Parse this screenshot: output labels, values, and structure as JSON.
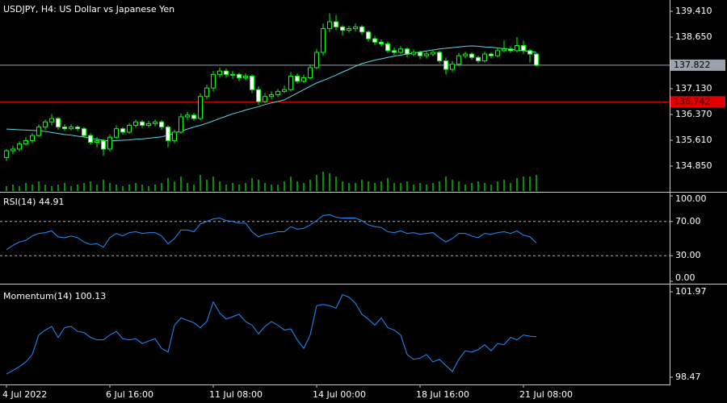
{
  "chart_data": [
    {
      "type": "candlestick",
      "title": "USDJPY, H4:  US Dollar vs Japanese Yen",
      "categories": [
        "4 Jul 2022",
        null,
        null,
        null,
        null,
        null,
        null,
        null,
        null,
        null,
        null,
        null,
        null,
        null,
        null,
        null,
        "6 Jul 16:00",
        null,
        null,
        null,
        null,
        null,
        null,
        null,
        null,
        null,
        null,
        null,
        null,
        null,
        null,
        null,
        "11 Jul 08:00",
        null,
        null,
        null,
        null,
        null,
        null,
        null,
        null,
        null,
        null,
        null,
        null,
        null,
        null,
        null,
        "14 Jul 00:00",
        null,
        null,
        null,
        null,
        null,
        null,
        null,
        null,
        null,
        null,
        null,
        null,
        null,
        null,
        null,
        "18 Jul 16:00",
        null,
        null,
        null,
        null,
        null,
        null,
        null,
        null,
        null,
        null,
        null,
        null,
        null,
        null,
        null,
        "21 Jul 08:00",
        null,
        null
      ],
      "ohlc": [
        [
          135.1,
          135.35,
          135.0,
          135.3
        ],
        [
          135.3,
          135.45,
          135.2,
          135.35
        ],
        [
          135.35,
          135.58,
          135.28,
          135.5
        ],
        [
          135.5,
          135.7,
          135.45,
          135.6
        ],
        [
          135.6,
          135.82,
          135.52,
          135.75
        ],
        [
          135.75,
          136.08,
          135.7,
          136.0
        ],
        [
          136.0,
          136.22,
          135.92,
          136.15
        ],
        [
          136.15,
          136.38,
          136.05,
          136.25
        ],
        [
          136.25,
          136.3,
          135.92,
          136.0
        ],
        [
          136.0,
          136.08,
          135.88,
          135.95
        ],
        [
          135.95,
          136.08,
          135.9,
          136.0
        ],
        [
          136.0,
          136.05,
          135.88,
          135.95
        ],
        [
          135.95,
          136.0,
          135.68,
          135.75
        ],
        [
          135.75,
          135.82,
          135.48,
          135.55
        ],
        [
          135.55,
          135.7,
          135.4,
          135.6
        ],
        [
          135.6,
          135.65,
          135.15,
          135.35
        ],
        [
          135.35,
          135.78,
          135.28,
          135.7
        ],
        [
          135.7,
          136.05,
          135.65,
          135.95
        ],
        [
          135.95,
          136.0,
          135.78,
          135.85
        ],
        [
          135.85,
          136.12,
          135.8,
          136.05
        ],
        [
          136.05,
          136.22,
          135.98,
          136.15
        ],
        [
          136.15,
          136.2,
          135.98,
          136.05
        ],
        [
          136.05,
          136.18,
          135.98,
          136.1
        ],
        [
          136.1,
          136.22,
          136.02,
          136.15
        ],
        [
          136.15,
          136.2,
          135.92,
          136.0
        ],
        [
          136.0,
          136.05,
          135.4,
          135.6
        ],
        [
          135.6,
          135.92,
          135.52,
          135.85
        ],
        [
          135.85,
          136.4,
          135.8,
          136.3
        ],
        [
          136.3,
          136.45,
          136.2,
          136.35
        ],
        [
          136.35,
          136.42,
          136.18,
          136.25
        ],
        [
          136.25,
          137.0,
          136.2,
          136.9
        ],
        [
          136.9,
          137.25,
          136.82,
          137.15
        ],
        [
          137.15,
          137.65,
          137.05,
          137.55
        ],
        [
          137.55,
          137.75,
          137.45,
          137.65
        ],
        [
          137.65,
          137.72,
          137.45,
          137.55
        ],
        [
          137.55,
          137.65,
          137.42,
          137.55
        ],
        [
          137.55,
          137.6,
          137.35,
          137.45
        ],
        [
          137.45,
          137.58,
          137.38,
          137.5
        ],
        [
          137.5,
          137.55,
          137.0,
          137.1
        ],
        [
          137.1,
          137.2,
          136.65,
          136.75
        ],
        [
          136.75,
          137.0,
          136.7,
          136.9
        ],
        [
          136.9,
          137.05,
          136.82,
          136.95
        ],
        [
          136.95,
          137.12,
          136.88,
          137.05
        ],
        [
          137.05,
          137.22,
          137.0,
          137.1
        ],
        [
          137.1,
          137.62,
          137.05,
          137.5
        ],
        [
          137.5,
          137.58,
          137.28,
          137.35
        ],
        [
          137.35,
          137.55,
          137.3,
          137.45
        ],
        [
          137.45,
          137.85,
          137.4,
          137.75
        ],
        [
          137.75,
          138.3,
          137.7,
          138.2
        ],
        [
          138.2,
          139.05,
          138.1,
          138.9
        ],
        [
          138.9,
          139.35,
          138.8,
          139.1
        ],
        [
          139.1,
          139.3,
          138.85,
          138.95
        ],
        [
          138.95,
          139.0,
          138.7,
          138.85
        ],
        [
          138.85,
          138.98,
          138.78,
          138.9
        ],
        [
          138.9,
          139.05,
          138.82,
          138.95
        ],
        [
          138.95,
          139.0,
          138.72,
          138.8
        ],
        [
          138.8,
          138.85,
          138.52,
          138.6
        ],
        [
          138.6,
          138.68,
          138.42,
          138.5
        ],
        [
          138.5,
          138.58,
          138.38,
          138.45
        ],
        [
          138.45,
          138.52,
          138.18,
          138.25
        ],
        [
          138.25,
          138.35,
          138.12,
          138.2
        ],
        [
          138.2,
          138.38,
          138.15,
          138.3
        ],
        [
          138.3,
          138.35,
          138.05,
          138.15
        ],
        [
          138.15,
          138.28,
          138.08,
          138.2
        ],
        [
          138.2,
          138.25,
          138.0,
          138.1
        ],
        [
          138.1,
          138.22,
          138.02,
          138.15
        ],
        [
          138.15,
          138.28,
          138.08,
          138.2
        ],
        [
          138.2,
          138.25,
          137.88,
          137.95
        ],
        [
          137.95,
          138.05,
          137.55,
          137.7
        ],
        [
          137.7,
          137.95,
          137.62,
          137.85
        ],
        [
          137.85,
          138.18,
          137.8,
          138.1
        ],
        [
          138.1,
          138.22,
          138.02,
          138.15
        ],
        [
          138.15,
          138.2,
          137.98,
          138.05
        ],
        [
          138.05,
          138.1,
          137.88,
          137.95
        ],
        [
          137.95,
          138.22,
          137.9,
          138.15
        ],
        [
          138.15,
          138.2,
          138.02,
          138.1
        ],
        [
          138.1,
          138.32,
          138.05,
          138.25
        ],
        [
          138.25,
          138.55,
          138.2,
          138.3
        ],
        [
          138.3,
          138.38,
          138.18,
          138.25
        ],
        [
          138.25,
          138.65,
          138.2,
          138.4
        ],
        [
          138.4,
          138.55,
          138.15,
          138.25
        ],
        [
          138.25,
          138.3,
          137.9,
          138.15
        ],
        [
          138.15,
          138.18,
          137.78,
          137.822
        ]
      ],
      "up_color": "#000000",
      "down_color": "#ffffff",
      "outline_color": "#00ff00",
      "volume": {
        "color": "#00c000",
        "values": [
          3000,
          4000,
          3000,
          5000,
          4000,
          6000,
          4000,
          3000,
          4000,
          5000,
          3000,
          4000,
          5000,
          6000,
          4000,
          7000,
          5000,
          4000,
          3000,
          4000,
          5000,
          4000,
          3000,
          4000,
          5000,
          8000,
          6000,
          9000,
          5000,
          4000,
          10000,
          7000,
          9000,
          6000,
          4000,
          5000,
          4000,
          5000,
          8000,
          7000,
          5000,
          4000,
          4000,
          6000,
          9000,
          6000,
          5000,
          7000,
          10000,
          12000,
          11000,
          9000,
          6000,
          5000,
          5000,
          7000,
          6000,
          5000,
          6000,
          8000,
          5000,
          5000,
          6000,
          4000,
          5000,
          4000,
          5000,
          6000,
          9000,
          7000,
          6000,
          4000,
          5000,
          6000,
          5000,
          4000,
          6000,
          7000,
          5000,
          8000,
          9000,
          9000,
          10000
        ]
      },
      "ma": {
        "color": "#5fd7e8",
        "values": [
          135.94,
          135.93,
          135.92,
          135.91,
          135.9,
          135.89,
          135.87,
          135.84,
          135.81,
          135.78,
          135.76,
          135.73,
          135.71,
          135.67,
          135.64,
          135.61,
          135.59,
          135.6,
          135.61,
          135.62,
          135.64,
          135.65,
          135.67,
          135.69,
          135.71,
          135.76,
          135.82,
          135.88,
          135.94,
          136.0,
          136.05,
          136.11,
          136.18,
          136.25,
          136.32,
          136.39,
          136.44,
          136.5,
          136.55,
          136.6,
          136.66,
          136.71,
          136.75,
          136.8,
          136.9,
          137.0,
          137.1,
          137.2,
          137.3,
          137.37,
          137.45,
          137.53,
          137.62,
          137.7,
          137.79,
          137.87,
          137.92,
          137.97,
          138.01,
          138.05,
          138.09,
          138.12,
          138.15,
          138.18,
          138.21,
          138.24,
          138.27,
          138.3,
          138.32,
          138.34,
          138.36,
          138.38,
          138.39,
          138.38,
          138.36,
          138.35,
          138.33,
          138.31,
          138.29,
          138.27,
          138.25,
          138.22,
          138.2
        ]
      },
      "last_price": 137.822,
      "last_price_color": "#9aa3ad",
      "level": 136.742,
      "level_color": "#e00000",
      "ylim": [
        134.09,
        139.743
      ],
      "yticks": [
        {
          "value": 139.41,
          "label": "139.410"
        },
        {
          "value": 138.65,
          "label": "138.650"
        },
        {
          "value": 137.13,
          "label": "137.130"
        },
        {
          "value": 136.37,
          "label": "136.370"
        },
        {
          "value": 135.61,
          "label": "135.610"
        },
        {
          "value": 134.85,
          "label": "134.850"
        }
      ],
      "grid": false
    },
    {
      "type": "line",
      "title": "RSI(14) 44.91",
      "color": "#1e90ff",
      "values": [
        37,
        42,
        46,
        48,
        53,
        56,
        57,
        59,
        52,
        51,
        53,
        51,
        46,
        43,
        44,
        40,
        51,
        56,
        53,
        57,
        58,
        56,
        57,
        57,
        53,
        44,
        50,
        60,
        60,
        58,
        67,
        70,
        73,
        74,
        71,
        70,
        68,
        68,
        58,
        52,
        55,
        56,
        58,
        58,
        64,
        61,
        62,
        66,
        71,
        77,
        78,
        75,
        74,
        74,
        74,
        71,
        66,
        64,
        63,
        58,
        57,
        59,
        56,
        57,
        55,
        56,
        57,
        51,
        46,
        50,
        56,
        56,
        53,
        51,
        56,
        55,
        57,
        58,
        56,
        59,
        54,
        52,
        44.91
      ],
      "ylim": [
        0,
        100
      ],
      "yticks": [
        {
          "value": 100,
          "label": "100.00"
        },
        {
          "value": 70,
          "label": "70.00"
        },
        {
          "value": 30,
          "label": "30.00"
        },
        {
          "value": 0,
          "label": "0.00"
        }
      ],
      "grid": true
    },
    {
      "type": "line",
      "title": "Momentum(14) 100.13",
      "color": "#1e90ff",
      "values": [
        98.6,
        98.75,
        98.9,
        99.1,
        99.4,
        100.2,
        100.4,
        100.55,
        100.1,
        100.5,
        100.55,
        100.35,
        100.3,
        100.1,
        100.0,
        100.0,
        100.2,
        100.35,
        100.05,
        100.0,
        100.05,
        99.85,
        99.95,
        100.05,
        99.65,
        99.5,
        100.6,
        100.9,
        100.8,
        100.7,
        100.5,
        100.75,
        101.55,
        101.1,
        100.85,
        100.95,
        101.05,
        100.75,
        100.6,
        100.25,
        100.55,
        100.75,
        100.6,
        100.4,
        100.45,
        100.0,
        99.65,
        100.2,
        101.4,
        101.45,
        101.4,
        101.3,
        101.85,
        101.75,
        101.5,
        101.05,
        100.85,
        100.6,
        100.9,
        100.5,
        100.4,
        100.2,
        99.4,
        99.2,
        99.25,
        99.4,
        99.1,
        99.2,
        98.95,
        98.7,
        99.2,
        99.55,
        99.5,
        99.6,
        99.8,
        99.55,
        99.85,
        99.8,
        100.1,
        100.0,
        100.2,
        100.15,
        100.13
      ],
      "ylim": [
        98.47,
        101.97
      ],
      "yticks": [
        101.97,
        98.47
      ],
      "grid": false
    }
  ]
}
